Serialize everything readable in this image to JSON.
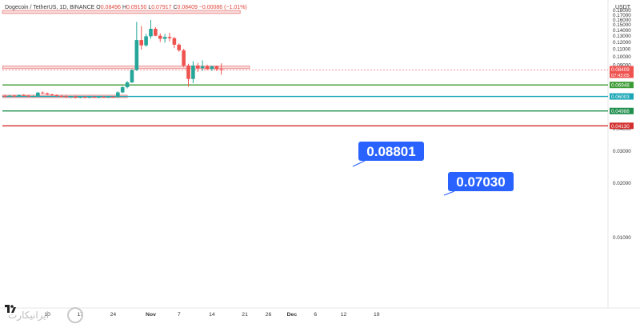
{
  "header": {
    "symbol": "Dogecoin / TetherUS, 1D, BINANCE",
    "o_label": "O",
    "o": "0.08496",
    "h_label": "H",
    "h": "0.09150",
    "l_label": "L",
    "l": "0.07917",
    "c_label": "C",
    "c": "0.08409",
    "change": "−0.00086 (−1.01%)"
  },
  "currency": "USDT",
  "watermark": "ایرانیکارت",
  "colors": {
    "up": "#26a69a",
    "down": "#ef5350",
    "zone_fill": "#f8d2d2",
    "zone_stroke": "#e57373",
    "green_line": "#3d9b35",
    "teal_line": "#1ba7b6",
    "red_line": "#d32f2f",
    "callout": "#2962ff"
  },
  "chart_data": {
    "type": "candlestick",
    "title": "Dogecoin / TetherUS, 1D, BINANCE",
    "ylabel": "USDT",
    "ylim": [
      0,
      0.18
    ],
    "log_scale": true,
    "grid": false,
    "x_ticks": [
      "10",
      "17",
      "24",
      "Nov",
      "7",
      "14",
      "21",
      "26",
      "Dec",
      "6",
      "12",
      "19"
    ],
    "y_ticks": [
      "0.18000",
      "0.17000",
      "0.16000",
      "0.15000",
      "0.14000",
      "0.13000",
      "0.12000",
      "0.11000",
      "0.10000",
      "0.09000",
      "0.08000",
      "0.07000",
      "0.06000",
      "0.05000",
      "0.04000",
      "0.03000",
      "0.02000",
      "0.01000"
    ],
    "candles": [
      {
        "date": "Oct 1",
        "o": 0.0605,
        "h": 0.0612,
        "l": 0.0596,
        "c": 0.0601
      },
      {
        "date": "Oct 2",
        "o": 0.0601,
        "h": 0.061,
        "l": 0.0594,
        "c": 0.0606
      },
      {
        "date": "Oct 3",
        "o": 0.0606,
        "h": 0.0611,
        "l": 0.0597,
        "c": 0.0603
      },
      {
        "date": "Oct 4",
        "o": 0.0603,
        "h": 0.0615,
        "l": 0.0599,
        "c": 0.0611
      },
      {
        "date": "Oct 5",
        "o": 0.0611,
        "h": 0.0618,
        "l": 0.0602,
        "c": 0.0606
      },
      {
        "date": "Oct 6",
        "o": 0.0606,
        "h": 0.0612,
        "l": 0.0596,
        "c": 0.06
      },
      {
        "date": "Oct 7",
        "o": 0.06,
        "h": 0.0608,
        "l": 0.0594,
        "c": 0.0603
      },
      {
        "date": "Oct 8",
        "o": 0.0603,
        "h": 0.0635,
        "l": 0.06,
        "c": 0.063
      },
      {
        "date": "Oct 9",
        "o": 0.063,
        "h": 0.064,
        "l": 0.0618,
        "c": 0.0624
      },
      {
        "date": "Oct 10",
        "o": 0.0624,
        "h": 0.0631,
        "l": 0.0612,
        "c": 0.0616
      },
      {
        "date": "Oct 11",
        "o": 0.0616,
        "h": 0.0622,
        "l": 0.0604,
        "c": 0.061
      },
      {
        "date": "Oct 12",
        "o": 0.061,
        "h": 0.0616,
        "l": 0.0598,
        "c": 0.0604
      },
      {
        "date": "Oct 13",
        "o": 0.0604,
        "h": 0.0612,
        "l": 0.0596,
        "c": 0.0602
      },
      {
        "date": "Oct 14",
        "o": 0.0602,
        "h": 0.0608,
        "l": 0.059,
        "c": 0.0596
      },
      {
        "date": "Oct 15",
        "o": 0.0596,
        "h": 0.0604,
        "l": 0.0588,
        "c": 0.06
      },
      {
        "date": "Oct 16",
        "o": 0.06,
        "h": 0.0606,
        "l": 0.0586,
        "c": 0.0592
      },
      {
        "date": "Oct 17",
        "o": 0.0592,
        "h": 0.0602,
        "l": 0.0587,
        "c": 0.0597
      },
      {
        "date": "Oct 18",
        "o": 0.0597,
        "h": 0.0603,
        "l": 0.0589,
        "c": 0.0594
      },
      {
        "date": "Oct 19",
        "o": 0.0594,
        "h": 0.06,
        "l": 0.0587,
        "c": 0.0597
      },
      {
        "date": "Oct 20",
        "o": 0.0597,
        "h": 0.0605,
        "l": 0.059,
        "c": 0.0592
      },
      {
        "date": "Oct 21",
        "o": 0.0592,
        "h": 0.06,
        "l": 0.0588,
        "c": 0.0597
      },
      {
        "date": "Oct 22",
        "o": 0.0597,
        "h": 0.0604,
        "l": 0.0592,
        "c": 0.0594
      },
      {
        "date": "Oct 23",
        "o": 0.0594,
        "h": 0.0601,
        "l": 0.059,
        "c": 0.0598
      },
      {
        "date": "Oct 24",
        "o": 0.0598,
        "h": 0.0603,
        "l": 0.0591,
        "c": 0.0595
      },
      {
        "date": "Oct 25",
        "o": 0.0595,
        "h": 0.0641,
        "l": 0.0593,
        "c": 0.0632
      },
      {
        "date": "Oct 26",
        "o": 0.0632,
        "h": 0.0685,
        "l": 0.0627,
        "c": 0.0675
      },
      {
        "date": "Oct 27",
        "o": 0.0675,
        "h": 0.073,
        "l": 0.0665,
        "c": 0.0718
      },
      {
        "date": "Oct 28",
        "o": 0.0718,
        "h": 0.085,
        "l": 0.0712,
        "c": 0.084
      },
      {
        "date": "Oct 29",
        "o": 0.084,
        "h": 0.155,
        "l": 0.083,
        "c": 0.123
      },
      {
        "date": "Oct 30",
        "o": 0.123,
        "h": 0.147,
        "l": 0.109,
        "c": 0.115
      },
      {
        "date": "Oct 31",
        "o": 0.115,
        "h": 0.133,
        "l": 0.113,
        "c": 0.129
      },
      {
        "date": "Nov 1",
        "o": 0.129,
        "h": 0.159,
        "l": 0.125,
        "c": 0.142
      },
      {
        "date": "Nov 2",
        "o": 0.142,
        "h": 0.145,
        "l": 0.129,
        "c": 0.13
      },
      {
        "date": "Nov 3",
        "o": 0.13,
        "h": 0.134,
        "l": 0.12,
        "c": 0.125
      },
      {
        "date": "Nov 4",
        "o": 0.125,
        "h": 0.133,
        "l": 0.119,
        "c": 0.128
      },
      {
        "date": "Nov 5",
        "o": 0.128,
        "h": 0.135,
        "l": 0.121,
        "c": 0.126
      },
      {
        "date": "Nov 6",
        "o": 0.126,
        "h": 0.128,
        "l": 0.111,
        "c": 0.116
      },
      {
        "date": "Nov 7",
        "o": 0.116,
        "h": 0.118,
        "l": 0.106,
        "c": 0.108
      },
      {
        "date": "Nov 8",
        "o": 0.108,
        "h": 0.11,
        "l": 0.087,
        "c": 0.089
      },
      {
        "date": "Nov 9",
        "o": 0.089,
        "h": 0.091,
        "l": 0.068,
        "c": 0.075
      },
      {
        "date": "Nov 10",
        "o": 0.075,
        "h": 0.094,
        "l": 0.071,
        "c": 0.089
      },
      {
        "date": "Nov 11",
        "o": 0.089,
        "h": 0.092,
        "l": 0.082,
        "c": 0.086
      },
      {
        "date": "Nov 12",
        "o": 0.086,
        "h": 0.095,
        "l": 0.083,
        "c": 0.088
      },
      {
        "date": "Nov 13",
        "o": 0.088,
        "h": 0.09,
        "l": 0.084,
        "c": 0.085
      },
      {
        "date": "Nov 14",
        "o": 0.085,
        "h": 0.089,
        "l": 0.083,
        "c": 0.088
      },
      {
        "date": "Nov 15",
        "o": 0.088,
        "h": 0.089,
        "l": 0.083,
        "c": 0.085
      },
      {
        "date": "Nov 16",
        "o": 0.08496,
        "h": 0.0915,
        "l": 0.07917,
        "c": 0.08409
      }
    ],
    "zones": [
      {
        "low": 0.1725,
        "high": 0.1795,
        "start": "Oct 1",
        "end": "Nov 20"
      },
      {
        "low": 0.0855,
        "high": 0.0885,
        "start": "Oct 1",
        "end": "Nov 22"
      },
      {
        "low": 0.0598,
        "high": 0.061,
        "start": "Oct 1",
        "end": "Oct 27"
      }
    ],
    "levels": [
      {
        "value": 0.06948,
        "color": "#3d9b35",
        "tag": "0.06948"
      },
      {
        "value": 0.06003,
        "color": "#1ba7b6",
        "tag": "0.06003"
      },
      {
        "value": 0.04988,
        "color": "#1f8f4d",
        "tag": "0.04988"
      },
      {
        "value": 0.0413,
        "color": "#d32f2f",
        "tag": "0.04130"
      }
    ],
    "last_price": {
      "value": 0.08409,
      "tag": "0.08409",
      "countdown": "07:43:05"
    },
    "callouts": [
      {
        "text": "0.08801",
        "value": 0.08801
      },
      {
        "text": "0.07030",
        "value": 0.0703
      }
    ]
  }
}
